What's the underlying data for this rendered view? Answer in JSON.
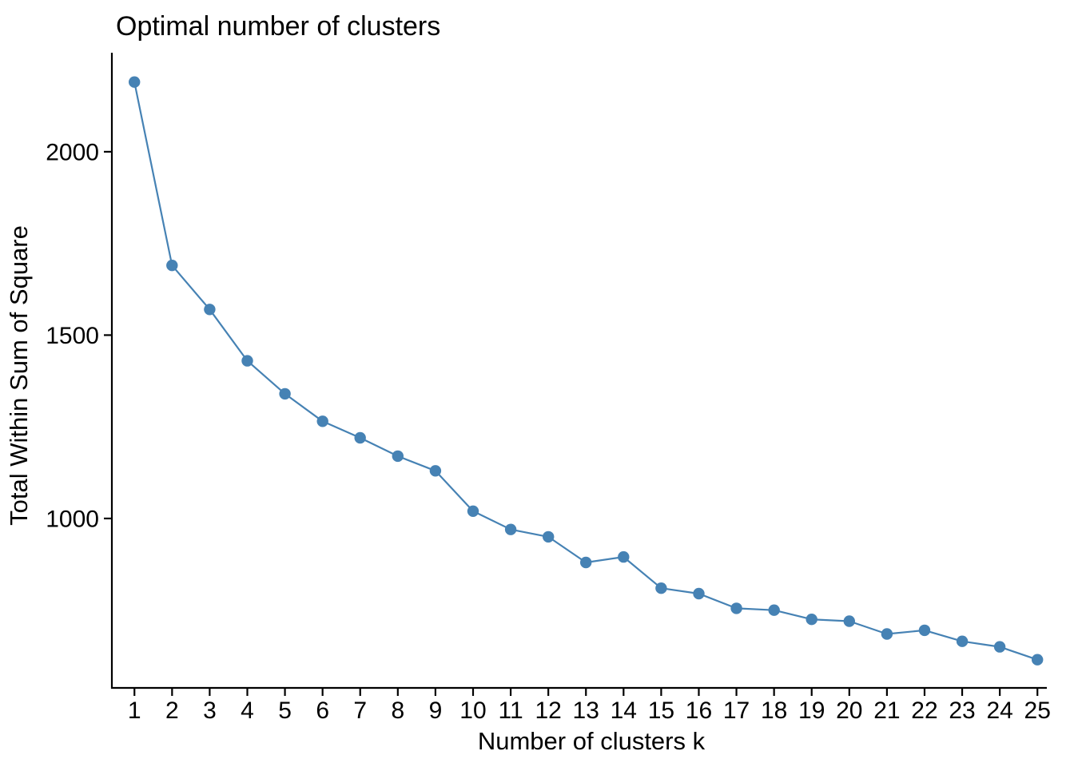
{
  "figure": {
    "background": "#ffffff",
    "text_color": "#000000",
    "axis_color": "#000000"
  },
  "chart_data": {
    "type": "line",
    "title": "Optimal number of clusters",
    "xlabel": "Number of clusters k",
    "ylabel": "Total Within Sum of Square",
    "series": [
      {
        "name": "total-within-sum-of-square",
        "x": [
          1,
          2,
          3,
          4,
          5,
          6,
          7,
          8,
          9,
          10,
          11,
          12,
          13,
          14,
          15,
          16,
          17,
          18,
          19,
          20,
          21,
          22,
          23,
          24,
          25
        ],
        "values": [
          2190,
          1690,
          1570,
          1430,
          1340,
          1265,
          1220,
          1170,
          1130,
          1020,
          970,
          950,
          880,
          895,
          810,
          795,
          755,
          750,
          725,
          720,
          685,
          695,
          665,
          650,
          615
        ]
      }
    ],
    "xticks": [
      1,
      2,
      3,
      4,
      5,
      6,
      7,
      8,
      9,
      10,
      11,
      12,
      13,
      14,
      15,
      16,
      17,
      18,
      19,
      20,
      21,
      22,
      23,
      24,
      25
    ],
    "yticks": [
      1000,
      1500,
      2000
    ],
    "xlim": [
      0.4,
      25.25
    ],
    "ylim": [
      538,
      2270
    ],
    "grid": false,
    "legend": "none",
    "line_color": "#4682B4",
    "marker": "circle",
    "marker_color": "#4682B4"
  }
}
